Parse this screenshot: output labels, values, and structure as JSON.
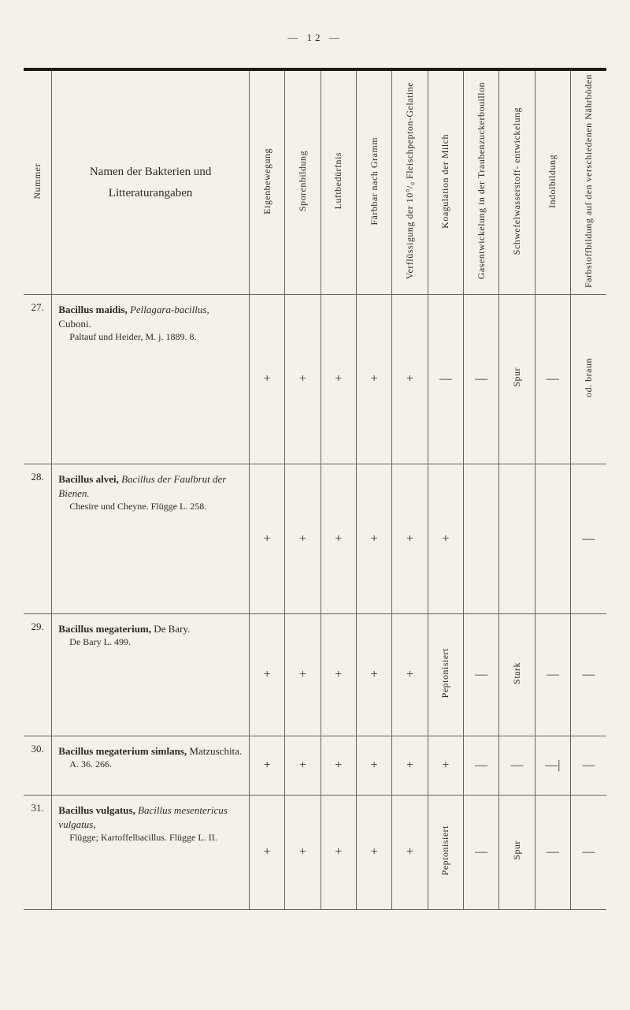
{
  "page_number": "— 12 —",
  "columns": {
    "nummer": "Nummer",
    "namen": "Namen der Bakterien und Litteraturangaben",
    "c1": "Eigenbewegung",
    "c2": "Sporenbildung",
    "c3": "Luftbedürfnis",
    "c4": "Färbbar nach Gramm",
    "c5": "Verflüssigung der 10°/₀ Fleischpepton-Gelatine",
    "c6": "Koagulation der Milch",
    "c7": "Gasentwickelung in der Traubenzuckerbouillon",
    "c8": "Schwefelwasserstoff- entwickelung",
    "c9": "Indolbildung",
    "c10": "Farbstoffbildung auf den verschiedenen Nährböden"
  },
  "rows": [
    {
      "num": "27.",
      "name_bold": "Bacillus maidis,",
      "name_italic": "Pellagara-bacillus,",
      "name_plain": " Cuboni.",
      "sub1": "Paltauf und Heider, M. j. 1889. 8.",
      "cells": [
        "+",
        "+",
        "+",
        "+",
        "+",
        "—",
        "—",
        "Spur",
        "—",
        "od. braun"
      ]
    },
    {
      "num": "28.",
      "name_bold": "Bacillus alvei,",
      "name_italic": "Bacillus der Faulbrut der Bienen.",
      "name_plain": "",
      "sub1": "Chesire und Cheyne. Flügge L. 258.",
      "cells": [
        "+",
        "+",
        "+",
        "+",
        "+",
        "+",
        "",
        "",
        "",
        "—"
      ]
    },
    {
      "num": "29.",
      "name_bold": "Bacillus megaterium,",
      "name_italic": "",
      "name_plain": " De Bary.",
      "sub1": "De Bary L. 499.",
      "cells": [
        "+",
        "+",
        "+",
        "+",
        "+",
        "Peptonisiert",
        "—",
        "Stark",
        "—",
        "—"
      ]
    },
    {
      "num": "30.",
      "name_bold": "Bacillus megaterium simlans,",
      "name_italic": "",
      "name_plain": " Matzuschita.",
      "sub1": "A. 36. 266.",
      "cells": [
        "+",
        "+",
        "+",
        "+",
        "+",
        "+",
        "—",
        "—",
        "—|",
        "—"
      ]
    },
    {
      "num": "31.",
      "name_bold": "Bacillus vulgatus,",
      "name_italic": "Bacillus mesentericus vulgatus,",
      "name_plain": "",
      "sub1": "Flügge; Kartoffelbacillus. Flügge L. II.",
      "cells": [
        "+",
        "+",
        "+",
        "+",
        "+",
        "Peptonisiert",
        "—",
        "Spur",
        "—",
        "—"
      ]
    }
  ],
  "vertical_cells": {
    "r27c8": true,
    "r27c10": true,
    "r29c6": true,
    "r29c8": true,
    "r31c6": true,
    "r31c8": true
  }
}
